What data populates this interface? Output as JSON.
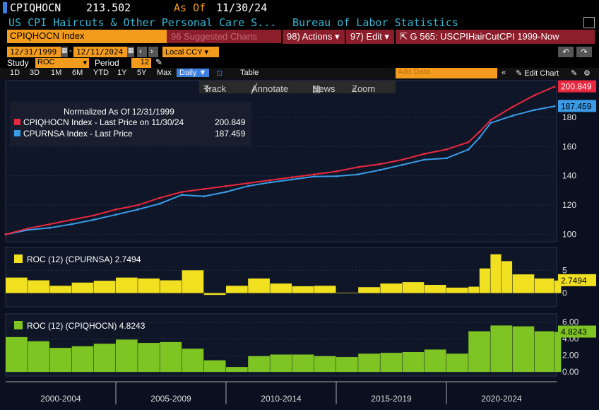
{
  "header": {
    "ticker": "CPIQHOCN",
    "price": "213.502",
    "asof_label": "As Of",
    "asof_date": "11/30/24",
    "description": "US CPI Haircuts & Other Personal Care S...",
    "source": "Bureau of Labor Statistics"
  },
  "toolbar": {
    "security": "CPIQHOCN Index",
    "suggested": "96 Suggested Charts",
    "actions": "98) Actions",
    "edit": "97) Edit",
    "function": "G 565: USCPIHairCutCPI 1999-Now"
  },
  "range": {
    "start": "12/31/1999",
    "end": "12/11/2024",
    "currency": "Local CCY"
  },
  "study": {
    "label": "Study",
    "value": "ROC",
    "period_label": "Period",
    "period_value": "12"
  },
  "periods": [
    "1D",
    "3D",
    "1M",
    "6M",
    "YTD",
    "1Y",
    "5Y",
    "Max"
  ],
  "frequency": "Daily",
  "table_label": "Table",
  "add_data": "Add Data",
  "edit_chart": "Edit Chart",
  "tools": {
    "track": "Track",
    "annotate": "Annotate",
    "news": "News",
    "zoom": "Zoom"
  },
  "legend": {
    "title": "Normalized As Of 12/31/1999",
    "series1": "CPIQHOCN Index - Last Price on 11/30/24",
    "series1_value": "200.849",
    "series2": "CPURNSA Index - Last Price",
    "series2_value": "187.459"
  },
  "colors": {
    "series1": "#e8283f",
    "series2": "#3a9be8",
    "roc1": "#f0e020",
    "roc2": "#7ec423"
  },
  "chart_data": [
    {
      "type": "line",
      "title": "Normalized As Of 12/31/1999",
      "x_range": [
        2000,
        2025
      ],
      "ylim": [
        95,
        205
      ],
      "yticks": [
        100,
        120,
        140,
        160,
        180
      ],
      "series": [
        {
          "name": "CPIQHOCN Index - Last Price on 11/30/24",
          "last": "200.849",
          "x": [
            2000,
            2001,
            2002,
            2003,
            2004,
            2005,
            2006,
            2007,
            2008,
            2009,
            2010,
            2011,
            2012,
            2013,
            2014,
            2015,
            2016,
            2017,
            2018,
            2019,
            2020,
            2021,
            2021.5,
            2022,
            2023,
            2024,
            2024.9
          ],
          "y": [
            100,
            104,
            107,
            110,
            113,
            117,
            120,
            125,
            129,
            131,
            133,
            135,
            137,
            139,
            141,
            143,
            146,
            148,
            151,
            155,
            158,
            163,
            170,
            178,
            187,
            195,
            200.849
          ]
        },
        {
          "name": "CPURNSA Index - Last Price",
          "last": "187.459",
          "x": [
            2000,
            2001,
            2002,
            2003,
            2004,
            2005,
            2006,
            2007,
            2008,
            2009,
            2010,
            2011,
            2012,
            2013,
            2014,
            2015,
            2016,
            2017,
            2018,
            2019,
            2020,
            2021,
            2021.5,
            2022,
            2023,
            2024,
            2024.9
          ],
          "y": [
            100,
            103,
            104.5,
            107,
            110,
            113.5,
            117,
            121,
            127,
            126,
            129,
            133,
            135.5,
            137.5,
            139.5,
            139.7,
            141,
            144,
            147.5,
            151,
            152,
            158,
            166,
            176,
            181,
            185,
            187.459
          ]
        }
      ]
    },
    {
      "type": "bar",
      "title": "ROC (12) (CPURNSA)",
      "last": "2.7494",
      "ylim": [
        -3,
        10
      ],
      "yticks": [
        0,
        5
      ],
      "x": [
        2000,
        2001,
        2002,
        2003,
        2004,
        2005,
        2006,
        2007,
        2008,
        2009,
        2010,
        2011,
        2012,
        2013,
        2014,
        2015,
        2016,
        2017,
        2018,
        2019,
        2020,
        2021,
        2021.5,
        2022,
        2022.5,
        2023,
        2024,
        2024.9
      ],
      "values": [
        3.4,
        2.8,
        1.6,
        2.3,
        2.7,
        3.4,
        3.2,
        2.8,
        5.0,
        -0.4,
        1.6,
        3.2,
        2.1,
        1.5,
        1.6,
        0.1,
        1.3,
        2.1,
        2.4,
        1.8,
        1.2,
        1.4,
        5.4,
        8.5,
        7.0,
        4.1,
        3.2,
        2.7494
      ]
    },
    {
      "type": "bar",
      "title": "ROC (12) (CPIQHOCN)",
      "last": "4.8243",
      "ylim": [
        -0.5,
        7
      ],
      "yticks": [
        "0.00",
        "2.00",
        "4.00",
        "6.00"
      ],
      "x": [
        2000,
        2001,
        2002,
        2003,
        2004,
        2005,
        2006,
        2007,
        2008,
        2009,
        2010,
        2011,
        2012,
        2013,
        2014,
        2015,
        2016,
        2017,
        2018,
        2019,
        2020,
        2021,
        2022,
        2023,
        2024,
        2024.9
      ],
      "values": [
        4.2,
        3.7,
        2.9,
        3.1,
        3.4,
        3.9,
        3.5,
        3.6,
        2.8,
        1.4,
        0.6,
        1.9,
        2.1,
        2.1,
        1.9,
        1.8,
        2.2,
        2.3,
        2.4,
        2.7,
        2.2,
        4.9,
        5.6,
        5.5,
        4.9,
        4.8243
      ]
    }
  ],
  "x_axis": [
    "2000-2004",
    "2005-2009",
    "2010-2014",
    "2015-2019",
    "2020-2024"
  ]
}
